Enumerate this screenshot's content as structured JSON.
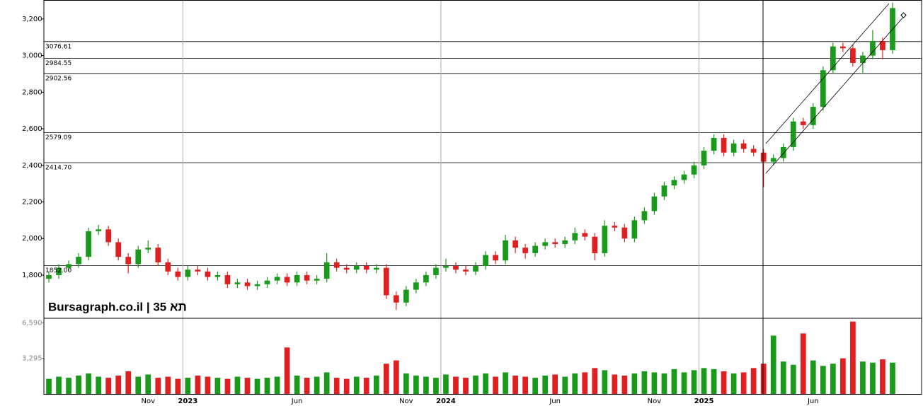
{
  "chart_data": {
    "type": "candlestick",
    "watermark": "Bursagraph.co.il | תא 35",
    "up_color": "#1a9a1a",
    "down_color": "#e02020",
    "ylim": [
      1564,
      3304
    ],
    "yticks": [
      {
        "value": 1800,
        "label": "1,800"
      },
      {
        "value": 2000,
        "label": "2,000"
      },
      {
        "value": 2200,
        "label": "2,200"
      },
      {
        "value": 2400,
        "label": "2,400"
      },
      {
        "value": 2600,
        "label": "2,600"
      },
      {
        "value": 2800,
        "label": "2,800"
      },
      {
        "value": 3000,
        "label": "3,000"
      },
      {
        "value": 3200,
        "label": "3,200"
      }
    ],
    "levels": [
      3076.61,
      2984.55,
      2902.56,
      2579.09,
      {
        "value": 2414.7,
        "label": "2414.70"
      },
      {
        "value": 1852,
        "label": "1852.00"
      }
    ],
    "volume_ylim": [
      0,
      7000
    ],
    "volume_ticks": [
      {
        "value": 6590,
        "label": "6,590"
      },
      {
        "value": 3295,
        "label": "3,295"
      }
    ],
    "categories": [
      null,
      null,
      null,
      null,
      null,
      null,
      null,
      null,
      null,
      null,
      "Nov",
      null,
      null,
      null,
      "2023",
      null,
      null,
      null,
      null,
      null,
      null,
      null,
      null,
      null,
      null,
      "Jun",
      null,
      null,
      null,
      null,
      null,
      null,
      null,
      null,
      null,
      null,
      "Nov",
      null,
      null,
      null,
      "2024",
      null,
      null,
      null,
      null,
      null,
      null,
      null,
      null,
      null,
      null,
      "Jun",
      null,
      null,
      null,
      null,
      null,
      null,
      null,
      null,
      null,
      "Nov",
      null,
      null,
      null,
      null,
      "2025",
      null,
      null,
      null,
      null,
      null,
      null,
      null,
      null,
      null,
      null,
      "Jun",
      null,
      null,
      null,
      null,
      null,
      null,
      null,
      null
    ],
    "open": [
      1780,
      1800,
      1840,
      1860,
      1900,
      2040,
      2050,
      1980,
      1900,
      1860,
      1940,
      1950,
      1870,
      1820,
      1790,
      1830,
      1820,
      1790,
      1800,
      1750,
      1760,
      1740,
      1750,
      1770,
      1790,
      1760,
      1800,
      1770,
      1780,
      1870,
      1840,
      1830,
      1850,
      1830,
      1840,
      1690,
      1650,
      1720,
      1760,
      1800,
      1840,
      1850,
      1830,
      1820,
      1850,
      1910,
      1880,
      1990,
      1950,
      1920,
      1960,
      1980,
      1970,
      1990,
      2030,
      2010,
      1920,
      2070,
      2060,
      2000,
      2100,
      2150,
      2230,
      2290,
      2320,
      2350,
      2400,
      2480,
      2550,
      2470,
      2520,
      2490,
      2470,
      2420,
      2440,
      2500,
      2640,
      2620,
      2720,
      2920,
      3050,
      3040,
      2960,
      3000,
      3080,
      3030
    ],
    "high": [
      1820,
      1860,
      1880,
      1920,
      2060,
      2075,
      2070,
      2000,
      1920,
      1960,
      1990,
      1970,
      1890,
      1840,
      1850,
      1850,
      1840,
      1820,
      1820,
      1780,
      1780,
      1770,
      1790,
      1810,
      1810,
      1820,
      1820,
      1800,
      1920,
      1890,
      1860,
      1870,
      1870,
      1860,
      1860,
      1710,
      1740,
      1780,
      1820,
      1860,
      1890,
      1870,
      1850,
      1870,
      1930,
      1930,
      2020,
      2010,
      1970,
      1980,
      2000,
      2000,
      2010,
      2060,
      2050,
      2030,
      2100,
      2090,
      2080,
      2120,
      2170,
      2250,
      2310,
      2340,
      2370,
      2420,
      2500,
      2570,
      2570,
      2540,
      2540,
      2510,
      2490,
      2460,
      2520,
      2660,
      2660,
      2740,
      2940,
      3070,
      3070,
      3060,
      3020,
      3140,
      3100,
      3290
    ],
    "low": [
      1760,
      1780,
      1820,
      1840,
      1880,
      2020,
      1960,
      1880,
      1810,
      1840,
      1920,
      1850,
      1800,
      1770,
      1770,
      1800,
      1770,
      1770,
      1730,
      1730,
      1720,
      1720,
      1730,
      1750,
      1740,
      1740,
      1750,
      1750,
      1760,
      1820,
      1810,
      1810,
      1810,
      1810,
      1670,
      1610,
      1630,
      1700,
      1740,
      1780,
      1820,
      1810,
      1800,
      1800,
      1830,
      1860,
      1860,
      1920,
      1890,
      1900,
      1940,
      1950,
      1950,
      1970,
      1990,
      1880,
      1900,
      2040,
      1980,
      1980,
      2080,
      2130,
      2210,
      2270,
      2300,
      2330,
      2380,
      2460,
      2450,
      2450,
      2470,
      2450,
      2280,
      2400,
      2420,
      2480,
      2600,
      2600,
      2700,
      2900,
      3020,
      2940,
      2900,
      2980,
      2980,
      3010
    ],
    "close": [
      1800,
      1840,
      1860,
      1900,
      2040,
      2050,
      1980,
      1900,
      1860,
      1940,
      1950,
      1870,
      1820,
      1790,
      1830,
      1820,
      1790,
      1800,
      1750,
      1760,
      1740,
      1750,
      1770,
      1790,
      1760,
      1800,
      1770,
      1780,
      1870,
      1840,
      1830,
      1850,
      1830,
      1840,
      1690,
      1650,
      1720,
      1760,
      1800,
      1840,
      1850,
      1830,
      1820,
      1850,
      1910,
      1880,
      1990,
      1950,
      1920,
      1960,
      1980,
      1970,
      1990,
      2030,
      2010,
      1920,
      2070,
      2060,
      2000,
      2100,
      2150,
      2230,
      2290,
      2320,
      2350,
      2400,
      2480,
      2550,
      2470,
      2520,
      2490,
      2470,
      2420,
      2440,
      2500,
      2640,
      2620,
      2720,
      2920,
      3050,
      3040,
      2960,
      3000,
      3080,
      3030,
      3260
    ],
    "volume": [
      1400,
      1600,
      1500,
      1700,
      1900,
      1600,
      1500,
      1700,
      2100,
      1600,
      1800,
      1500,
      1600,
      1400,
      1500,
      1700,
      1600,
      1500,
      1400,
      1600,
      1500,
      1400,
      1500,
      1600,
      4300,
      1700,
      1500,
      1600,
      2000,
      1500,
      1400,
      1600,
      1500,
      1700,
      2800,
      3100,
      1900,
      1700,
      1600,
      1500,
      1800,
      1600,
      1500,
      1700,
      1900,
      1600,
      2000,
      1700,
      1600,
      1500,
      1700,
      1800,
      1600,
      1900,
      2000,
      2400,
      2200,
      1800,
      1700,
      1900,
      2100,
      2000,
      1900,
      2300,
      2000,
      2200,
      2400,
      2300,
      2100,
      1900,
      2000,
      2400,
      2800,
      5400,
      3000,
      2700,
      5600,
      3100,
      2600,
      2800,
      3300,
      6700,
      3000,
      2900,
      3200,
      2900
    ]
  }
}
